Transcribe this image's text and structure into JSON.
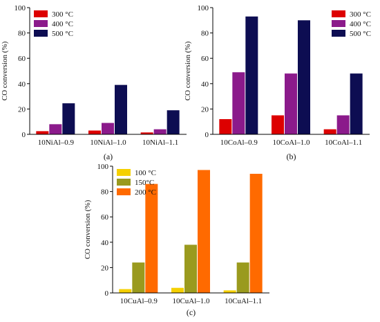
{
  "chart_data": [
    {
      "type": "bar",
      "panel_label": "(a)",
      "ylabel": "CO conversion (%)",
      "xlabel": "",
      "ylim": [
        0,
        100
      ],
      "yticks": [
        "0",
        "20",
        "40",
        "60",
        "80",
        "100"
      ],
      "legend_position": "top-left",
      "categories": [
        "10NiAl–0.9",
        "10NiAl–1.0",
        "10NiAl–1.1"
      ],
      "series": [
        {
          "name": "300 °C",
          "color": "#dd0000",
          "values": [
            2.5,
            3,
            1.5
          ]
        },
        {
          "name": "400 °C",
          "color": "#8b1a8b",
          "values": [
            8,
            9,
            4
          ]
        },
        {
          "name": "500 °C",
          "color": "#0d0d52",
          "values": [
            24.5,
            39,
            19
          ]
        }
      ]
    },
    {
      "type": "bar",
      "panel_label": "(b)",
      "ylabel": "CO conversion (%)",
      "xlabel": "",
      "ylim": [
        0,
        100
      ],
      "yticks": [
        "0",
        "20",
        "40",
        "60",
        "80",
        "100"
      ],
      "legend_position": "top-right",
      "categories": [
        "10CoAl–0.9",
        "10CoAl–1.0",
        "10CoAl–1.1"
      ],
      "series": [
        {
          "name": "300 °C",
          "color": "#dd0000",
          "values": [
            12,
            15,
            4
          ]
        },
        {
          "name": "400 °C",
          "color": "#8b1a8b",
          "values": [
            49,
            48,
            15
          ]
        },
        {
          "name": "500 °C",
          "color": "#0d0d52",
          "values": [
            93,
            90,
            48
          ]
        }
      ]
    },
    {
      "type": "bar",
      "panel_label": "(c)",
      "ylabel": "CO conversion (%)",
      "xlabel": "",
      "ylim": [
        0,
        100
      ],
      "yticks": [
        "0",
        "20",
        "40",
        "60",
        "80",
        "100"
      ],
      "legend_position": "top-left",
      "categories": [
        "10CuAl–0.9",
        "10CuAl–1.0",
        "10CuAl–1.1"
      ],
      "series": [
        {
          "name": "100 °C",
          "color": "#f5d000",
          "values": [
            3,
            4,
            2
          ]
        },
        {
          "name": "150°C",
          "color": "#9a9a1e",
          "values": [
            24,
            38,
            24
          ]
        },
        {
          "name": "200 °C",
          "color": "#ff6a00",
          "values": [
            86,
            97,
            94
          ]
        }
      ]
    }
  ]
}
